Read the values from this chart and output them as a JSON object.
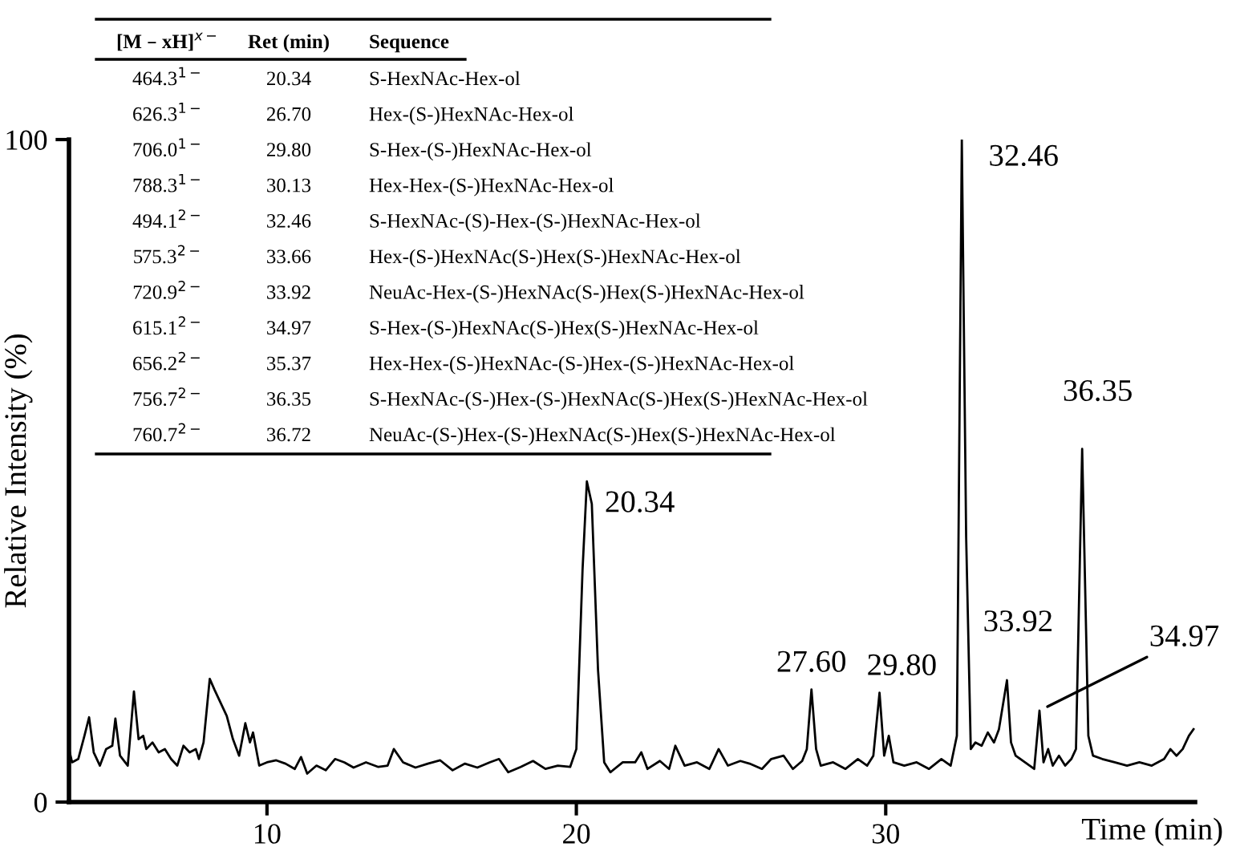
{
  "chart_data": {
    "type": "line",
    "xlabel": "Time (min)",
    "ylabel": "Relative Intensity (%)",
    "xlim": [
      3.6,
      40
    ],
    "ylim": [
      0,
      100
    ],
    "xticks": [
      10,
      20,
      30
    ],
    "yticks": [
      0,
      100
    ],
    "grid": false,
    "legend": false,
    "marker": "none",
    "line_style": "solid",
    "series": [
      {
        "color": "#000000",
        "x": [
          3.6,
          3.7,
          3.9,
          4.1,
          4.25,
          4.4,
          4.6,
          4.8,
          5.0,
          5.1,
          5.25,
          5.5,
          5.7,
          5.85,
          6.0,
          6.1,
          6.3,
          6.5,
          6.7,
          6.9,
          7.1,
          7.3,
          7.5,
          7.7,
          7.8,
          7.95,
          8.15,
          8.3,
          8.5,
          8.7,
          8.9,
          9.1,
          9.3,
          9.45,
          9.55,
          9.75,
          10.0,
          10.3,
          10.6,
          10.9,
          11.1,
          11.3,
          11.6,
          11.9,
          12.2,
          12.5,
          12.8,
          13.2,
          13.6,
          13.9,
          14.1,
          14.4,
          14.8,
          15.2,
          15.6,
          16.0,
          16.4,
          16.8,
          17.2,
          17.5,
          17.8,
          18.2,
          18.6,
          19.0,
          19.4,
          19.8,
          20.0,
          20.2,
          20.34,
          20.5,
          20.7,
          20.9,
          21.1,
          21.5,
          21.9,
          22.1,
          22.3,
          22.7,
          23.0,
          23.2,
          23.5,
          23.9,
          24.3,
          24.6,
          24.9,
          25.3,
          25.6,
          26.0,
          26.3,
          26.7,
          27.0,
          27.3,
          27.45,
          27.6,
          27.75,
          27.9,
          28.3,
          28.7,
          29.1,
          29.4,
          29.6,
          29.8,
          29.95,
          30.1,
          30.25,
          30.6,
          31.0,
          31.4,
          31.8,
          32.1,
          32.3,
          32.46,
          32.6,
          32.75,
          32.9,
          33.1,
          33.3,
          33.5,
          33.66,
          33.92,
          34.05,
          34.2,
          34.5,
          34.8,
          34.97,
          35.1,
          35.25,
          35.4,
          35.6,
          35.8,
          36.0,
          36.15,
          36.35,
          36.55,
          36.7,
          37.0,
          37.4,
          37.8,
          38.2,
          38.6,
          39.0,
          39.2,
          39.4,
          39.6,
          39.8,
          39.95
        ],
        "values": [
          8,
          6,
          6.5,
          10,
          12.8,
          7.5,
          5.5,
          8,
          8.5,
          12.6,
          7,
          5.5,
          16.7,
          9.5,
          10,
          8,
          9,
          7.5,
          8,
          6.5,
          5.5,
          8.5,
          7.5,
          8,
          6.5,
          9,
          18.6,
          17,
          15,
          13,
          9.5,
          7,
          11.9,
          9,
          10.5,
          5.5,
          6,
          6.3,
          5.8,
          5,
          6.8,
          4.3,
          5.5,
          4.8,
          6.5,
          6,
          5.2,
          6,
          5.3,
          5.5,
          8,
          6,
          5.2,
          5.8,
          6.3,
          4.8,
          5.8,
          5.2,
          6,
          6.5,
          4.5,
          5.3,
          6.2,
          5,
          5.5,
          5.3,
          8,
          35,
          48.4,
          45,
          20,
          6,
          4.5,
          6,
          6,
          7.5,
          5,
          6.2,
          5,
          8.5,
          5.5,
          6,
          5,
          8,
          5.5,
          6.2,
          5.8,
          5,
          6.5,
          7,
          5,
          6.2,
          8,
          17,
          8,
          5.5,
          6,
          5,
          6.5,
          5.5,
          7,
          16.5,
          7,
          10,
          6,
          5.5,
          6,
          5,
          6.5,
          5.5,
          10,
          100,
          40,
          8,
          9,
          8.5,
          10.5,
          9,
          11,
          18.4,
          9,
          7,
          6,
          5,
          13.8,
          6,
          8,
          5.5,
          7,
          5.5,
          6.5,
          8,
          53.3,
          10,
          7,
          6.5,
          6,
          5.5,
          6,
          5.5,
          6.5,
          8,
          7,
          8,
          10,
          11
        ]
      }
    ],
    "annotations": [
      {
        "text": "20.34",
        "x": 20.34,
        "y": 48.4
      },
      {
        "text": "32.46",
        "x": 32.46,
        "y": 100
      },
      {
        "text": "36.35",
        "x": 36.35,
        "y": 53.3
      },
      {
        "text": "27.60",
        "x": 27.6,
        "y": 17
      },
      {
        "text": "29.80",
        "x": 29.8,
        "y": 16.5
      },
      {
        "text": "33.92",
        "x": 33.92,
        "y": 18.4
      },
      {
        "text": "34.97",
        "x": 34.97,
        "y": 13.8
      },
      "[M – xH]$^{x−}$",
      "Ret (min)",
      "Sequence",
      "464.3$^{1−}$",
      "20.34",
      "S-HexNAc-Hex-ol",
      "626.3$^{1−}$",
      "26.70",
      "Hex-(S-)HexNAc-Hex-ol",
      "706.0$^{1−}$",
      "29.80",
      "S-Hex-(S-)HexNAc-Hex-ol",
      "788.3$^{1−}$",
      "30.13",
      "Hex-Hex-(S-)HexNAc-Hex-ol",
      "494.1$^{2−}$",
      "32.46",
      "S-HexNAc-(S)-Hex-(S-)HexNAc-Hex-ol",
      "575.3$^{2−}$",
      "33.66",
      "Hex-(S-)HexNAc(S-)Hex(S-)HexNAc-Hex-ol",
      "720.9$^{2−}$",
      "33.92",
      "NeuAc-Hex-(S-)HexNAc(S-)Hex(S-)HexNAc-Hex-ol",
      "615.1$^{2−}$",
      "34.97",
      "S-Hex-(S-)HexNAc(S-)Hex(S-)HexNAc-Hex-ol",
      "656.2$^{2−}$",
      "35.37",
      "Hex-Hex-(S-)HexNAc-(S-)Hex-(S-)HexNAc-Hex-ol",
      "756.7$^{2−}$",
      "36.35",
      "S-HexNAc-(S-)Hex-(S-)HexNAc(S-)Hex(S-)HexNAc-Hex-ol",
      "760.7$^{2−}$",
      "36.72",
      "NeuAc-(S-)Hex-(S-)HexNAc(S-)Hex(S-)HexNAc-Hex-ol"
    ]
  }
}
